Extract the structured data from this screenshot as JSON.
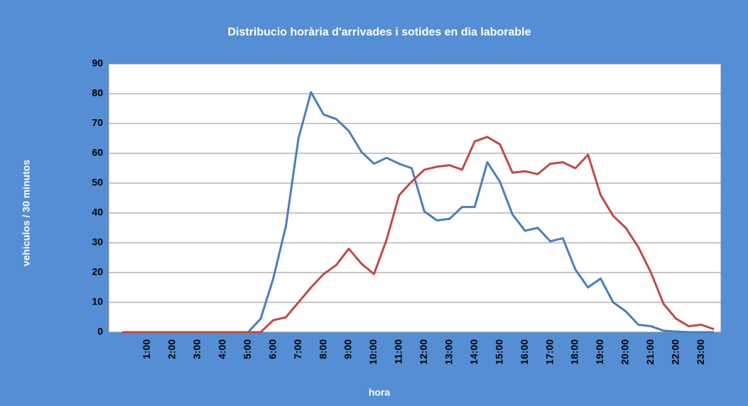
{
  "chart_data": {
    "type": "line",
    "title": "Distribucio horària d'arrivades i sotides en dia laborable",
    "x_label": "hora",
    "y_label": "vehiculos / 30 minutos",
    "categories": [
      null,
      null,
      "1:00",
      null,
      "2:00",
      null,
      "3:00",
      null,
      "4:00",
      null,
      "5:00",
      null,
      "6:00",
      null,
      "7:00",
      null,
      "8:00",
      null,
      "9:00",
      null,
      "10:00",
      null,
      "11:00",
      null,
      "12:00",
      null,
      "13:00",
      null,
      "14:00",
      null,
      "15:00",
      null,
      "16:00",
      null,
      "17:00",
      null,
      "18:00",
      null,
      "19:00",
      null,
      "20:00",
      null,
      "21:00",
      null,
      "22:00",
      null,
      "23:00",
      null
    ],
    "series": [
      {
        "color": "#4a7ebb",
        "values": [
          0,
          0,
          0,
          0,
          0,
          0,
          0,
          0,
          0,
          0,
          0,
          4.5,
          18,
          35.5,
          65,
          80.5,
          73,
          71.5,
          67.5,
          60.5,
          56.5,
          58.5,
          56.5,
          55,
          40.5,
          37.5,
          38,
          42,
          42,
          57,
          50.5,
          39.5,
          34,
          35,
          30.5,
          31.5,
          21,
          15,
          18,
          10,
          7,
          2.5,
          2,
          0.5,
          0.2,
          0,
          0,
          0
        ]
      },
      {
        "color": "#be4b48",
        "values": [
          0,
          0,
          0,
          0,
          0,
          0,
          0,
          0,
          0,
          0,
          0,
          0,
          4,
          5,
          10,
          15,
          19.5,
          22.5,
          28,
          23,
          19.5,
          31,
          46,
          50.5,
          54.5,
          55.5,
          56,
          54.5,
          64,
          65.5,
          63,
          53.5,
          54,
          53,
          56.5,
          57,
          55,
          59.5,
          46,
          39,
          35,
          28.5,
          20,
          9.5,
          4.5,
          2,
          2.5,
          1
        ]
      }
    ],
    "ylim": [
      0,
      90
    ],
    "yticks": [
      0,
      10,
      20,
      30,
      40,
      50,
      60,
      70,
      80,
      90
    ],
    "grid": true
  }
}
